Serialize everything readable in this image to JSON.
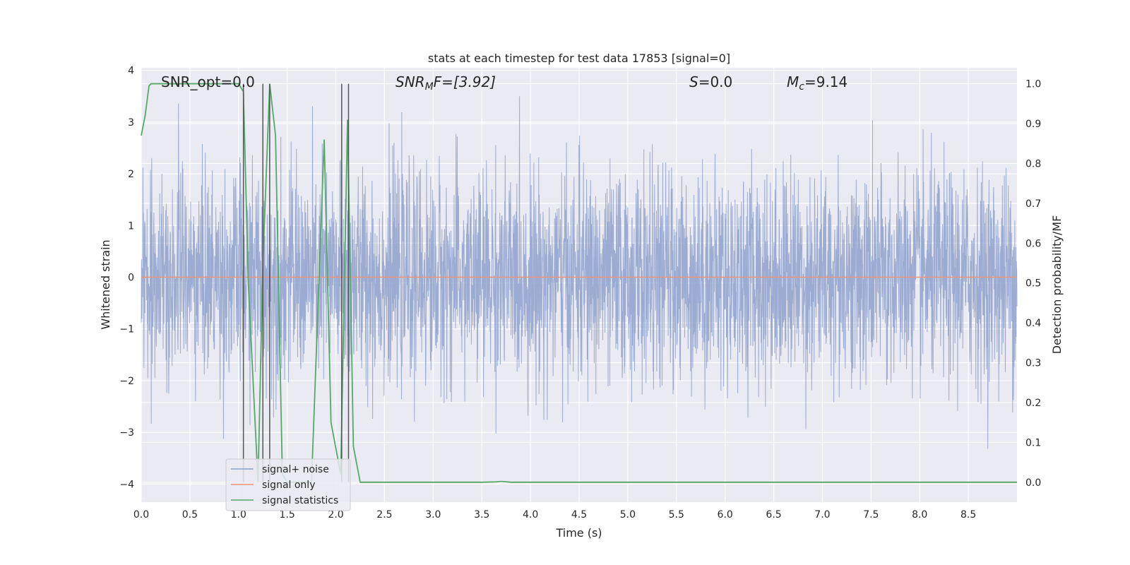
{
  "chart_data": {
    "type": "line",
    "title": "stats at each timestep for test data 17853 [signal=0]",
    "xlabel": "Time (s)",
    "ylabel": "Whitened strain",
    "ylabel_right": "Detection probability/MF",
    "xlim": [
      0.0,
      9.0
    ],
    "ylim": [
      -4.35,
      4.05
    ],
    "ylim_right": [
      -0.05,
      1.04
    ],
    "x_ticks": [
      "0.0",
      "0.5",
      "1.0",
      "1.5",
      "2.0",
      "2.5",
      "3.0",
      "3.5",
      "4.0",
      "4.5",
      "5.0",
      "5.5",
      "6.0",
      "6.5",
      "7.0",
      "7.5",
      "8.0",
      "8.5"
    ],
    "y_ticks": [
      "4",
      "3",
      "2",
      "1",
      "0",
      "−1",
      "−2",
      "−3",
      "−4"
    ],
    "y_right_ticks": [
      "1.0",
      "0.9",
      "0.8",
      "0.7",
      "0.6",
      "0.5",
      "0.4",
      "0.3",
      "0.2",
      "0.1",
      "0.0"
    ],
    "grid": true,
    "annotations": {
      "snr_opt": "SNR_opt=0.0",
      "snr_mf_sym": "SNR",
      "snr_mf_sub": "M",
      "snr_mf_rest": "F=[3.92]",
      "s_sym": "S",
      "s_rest": "=0.0",
      "mc_sym": "M",
      "mc_sub": "c",
      "mc_rest": "=9.14"
    },
    "legend": {
      "position": "lower-left",
      "entries": [
        "signal+ noise",
        "signal only",
        "signal statistics"
      ]
    },
    "series": [
      {
        "name": "signal+ noise",
        "axis": "left",
        "color": "#8da0cb",
        "description_values": "whitened noise, approx. uniform amplitude",
        "amplitude_sigma": 1.0,
        "x_range": [
          0.0,
          9.0
        ]
      },
      {
        "name": "signal only",
        "axis": "left",
        "color": "#e9967a",
        "x": [
          0.0,
          9.0
        ],
        "y": [
          0.0,
          0.0
        ]
      },
      {
        "name": "signal statistics",
        "axis": "right",
        "color": "#55a868",
        "x": [
          0.0,
          0.04,
          0.08,
          0.1,
          0.2,
          0.6,
          0.9,
          1.0,
          1.05,
          1.1,
          1.2,
          1.25,
          1.32,
          1.38,
          1.45,
          1.5,
          1.6,
          1.75,
          1.88,
          1.95,
          2.05,
          2.12,
          2.18,
          2.25,
          2.35,
          2.6,
          3.0,
          3.5,
          3.65,
          3.7,
          3.8,
          4.5,
          5.5,
          6.5,
          7.5,
          8.5,
          9.0
        ],
        "y": [
          0.87,
          0.92,
          0.995,
          1.0,
          1.0,
          1.0,
          1.0,
          1.0,
          0.98,
          0.5,
          0.0,
          0.55,
          1.0,
          0.87,
          0.02,
          0.0,
          0.0,
          0.0,
          0.86,
          0.15,
          0.02,
          0.91,
          0.09,
          0.0,
          0.0,
          0.0,
          0.0,
          0.0,
          0.001,
          0.002,
          0.0,
          0.0,
          0.0,
          0.0,
          0.0,
          0.0,
          0.0
        ]
      }
    ],
    "vertical_markers": {
      "color": "#555555",
      "x": [
        1.05,
        1.25,
        1.32,
        2.06,
        2.13
      ],
      "ymin": 0.0,
      "ymax": 1.0
    }
  },
  "colors": {
    "background": "#eaeaf2",
    "grid": "#ffffff"
  }
}
